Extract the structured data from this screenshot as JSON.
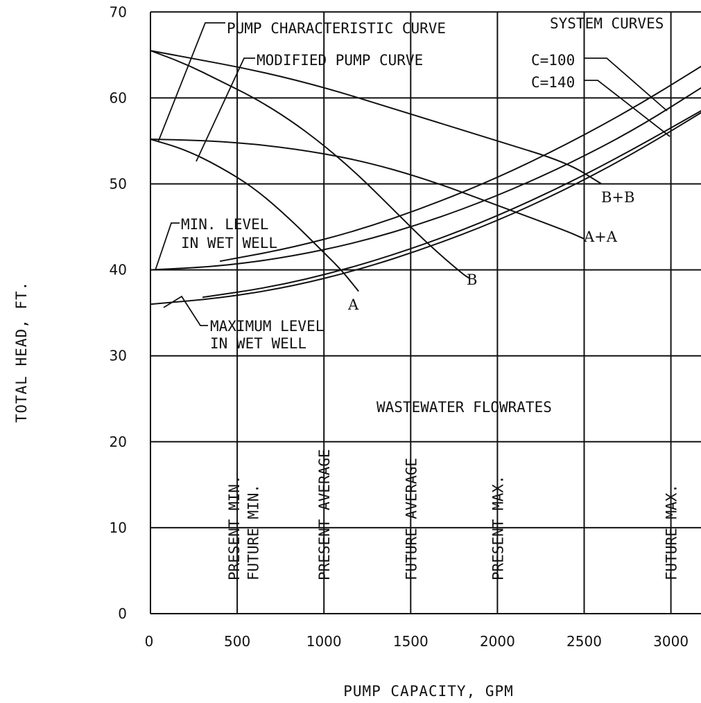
{
  "chart_data": {
    "type": "line",
    "title": "",
    "xlabel": "PUMP CAPACITY, GPM",
    "ylabel": "TOTAL HEAD, FT.",
    "xlim": [
      0,
      3150
    ],
    "ylim": [
      0,
      70
    ],
    "x_ticks": [
      0,
      500,
      1000,
      1500,
      2000,
      2500,
      3000
    ],
    "y_ticks": [
      0,
      10,
      20,
      30,
      40,
      50,
      60,
      70
    ],
    "grid": true,
    "series": [
      {
        "name": "A",
        "points": [
          [
            0,
            55.2
          ],
          [
            200,
            54.0
          ],
          [
            400,
            52.0
          ],
          [
            600,
            49.5
          ],
          [
            800,
            46.0
          ],
          [
            1000,
            42.0
          ],
          [
            1100,
            40.0
          ],
          [
            1200,
            37.5
          ]
        ]
      },
      {
        "name": "B",
        "points": [
          [
            0,
            65.5
          ],
          [
            200,
            64.0
          ],
          [
            400,
            62.0
          ],
          [
            600,
            60.0
          ],
          [
            800,
            57.5
          ],
          [
            1000,
            54.5
          ],
          [
            1200,
            51.0
          ],
          [
            1400,
            47.0
          ],
          [
            1600,
            43.0
          ],
          [
            1800,
            39.5
          ],
          [
            1840,
            39.0
          ]
        ]
      },
      {
        "name": "A+A",
        "points": [
          [
            0,
            55.2
          ],
          [
            400,
            55.0
          ],
          [
            800,
            54.2
          ],
          [
            1200,
            52.8
          ],
          [
            1600,
            50.5
          ],
          [
            2000,
            47.5
          ],
          [
            2400,
            44.5
          ],
          [
            2500,
            43.6
          ]
        ]
      },
      {
        "name": "B+B",
        "points": [
          [
            0,
            65.5
          ],
          [
            800,
            62.5
          ],
          [
            1600,
            57.5
          ],
          [
            2000,
            55.0
          ],
          [
            2400,
            52.5
          ],
          [
            2600,
            50.0
          ]
        ]
      },
      {
        "name": "",
        "points": [
          [
            0,
            40.0
          ],
          [
            400,
            40.4
          ],
          [
            800,
            41.5
          ],
          [
            1200,
            43.2
          ],
          [
            1600,
            45.6
          ],
          [
            2000,
            48.6
          ],
          [
            2400,
            52.2
          ],
          [
            2800,
            56.4
          ],
          [
            3200,
            61.5
          ]
        ]
      },
      {
        "name": "",
        "points": [
          [
            0,
            36.0
          ],
          [
            400,
            36.7
          ],
          [
            800,
            38.0
          ],
          [
            1200,
            40.0
          ],
          [
            1600,
            42.6
          ],
          [
            2000,
            45.7
          ],
          [
            2400,
            49.4
          ],
          [
            2800,
            53.7
          ],
          [
            3200,
            58.6
          ]
        ]
      },
      {
        "name": "",
        "points": [
          [
            400,
            41.0
          ],
          [
            800,
            42.5
          ],
          [
            1200,
            44.6
          ],
          [
            1600,
            47.4
          ],
          [
            2000,
            50.7
          ],
          [
            2400,
            54.6
          ],
          [
            2800,
            59.0
          ],
          [
            3200,
            64.0
          ]
        ]
      },
      {
        "name": "",
        "points": [
          [
            300,
            36.8
          ],
          [
            700,
            38.0
          ],
          [
            1100,
            39.9
          ],
          [
            1500,
            42.4
          ],
          [
            1900,
            45.4
          ],
          [
            2300,
            49.0
          ],
          [
            2700,
            53.1
          ],
          [
            3200,
            58.8
          ]
        ]
      }
    ],
    "labels": {
      "A": "A",
      "B": "B",
      "AA": "A+A",
      "BB": "B+B",
      "pump_curve": "PUMP CHARACTERISTIC CURVE",
      "modified_curve": "MODIFIED PUMP CURVE",
      "system_curves": "SYSTEM CURVES",
      "c100": "C=100",
      "c140": "C=140",
      "min_level_1": "MIN. LEVEL",
      "min_level_2": "IN WET WELL",
      "max_level_1": "MAXIMUM LEVEL",
      "max_level_2": "IN WET WELL",
      "wastewater": "WASTEWATER FLOWRATES"
    },
    "flowrates": [
      {
        "label": "PRESENT MIN.",
        "x": 480
      },
      {
        "label": "FUTURE MIN.",
        "x": 590
      },
      {
        "label": "PRESENT AVERAGE",
        "x": 1000
      },
      {
        "label": "FUTURE AVERAGE",
        "x": 1500
      },
      {
        "label": "PRESENT MAX.",
        "x": 2000
      },
      {
        "label": "FUTURE MAX.",
        "x": 3000
      }
    ]
  }
}
